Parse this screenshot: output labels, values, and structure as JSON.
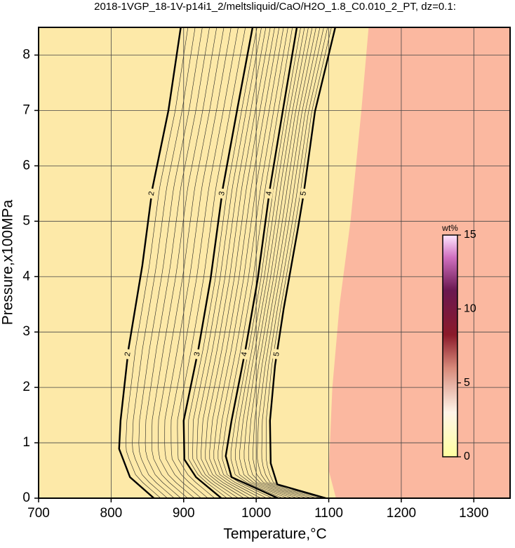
{
  "chart_data": {
    "type": "contour",
    "title": "2018-1VGP_18-1V-p14i1_2/meltsliquid/CaO/H2O_1.8_C0.010_2_PT, dz=0.1:",
    "x_label": "Temperature,°C",
    "y_label": "Pressure,x100MPa",
    "xlim": [
      700,
      1350
    ],
    "ylim": [
      0,
      8.5
    ],
    "xticks": [
      700,
      800,
      900,
      1000,
      1100,
      1200,
      1300
    ],
    "yticks": [
      0,
      1,
      2,
      3,
      4,
      5,
      6,
      7,
      8
    ],
    "grid": true,
    "background_color": "#fde9a8",
    "contours": [
      {
        "level": 2,
        "x": [
          859,
          826,
          811,
          813,
          824,
          843,
          857,
          879,
          896
        ],
        "y": [
          0,
          0.38,
          0.89,
          1.4,
          2.7,
          4.2,
          5.6,
          7.0,
          8.5
        ]
      },
      {
        "level": 3,
        "x": [
          952,
          917,
          901,
          900,
          920,
          937,
          954,
          975,
          995
        ],
        "y": [
          0,
          0.38,
          0.7,
          1.4,
          2.67,
          3.95,
          5.6,
          7.1,
          8.5
        ]
      },
      {
        "level": 4,
        "x": [
          1030,
          966,
          958,
          966,
          985,
          1002,
          1019,
          1038,
          1056
        ],
        "y": [
          0,
          0.38,
          0.76,
          1.4,
          2.67,
          3.95,
          5.6,
          7.1,
          8.5
        ]
      },
      {
        "level": 5,
        "x": [
          1096,
          1029,
          1020,
          1019,
          1026,
          1038,
          1057,
          1065,
          1081,
          1109
        ],
        "y": [
          0,
          0.25,
          0.63,
          1.4,
          2.4,
          3.43,
          4.83,
          5.46,
          6.98,
          8.5
        ]
      }
    ],
    "saturated_region": {
      "color": "#fbb8a0",
      "x": [
        1110,
        1100,
        1105,
        1115,
        1130,
        1145,
        1155
      ],
      "y": [
        0,
        0.5,
        2,
        3.5,
        5,
        7,
        8.5
      ]
    },
    "colorbar": {
      "title": "wt%",
      "clim": [
        0,
        15
      ],
      "ticks": [
        0,
        5,
        10,
        15
      ]
    }
  }
}
